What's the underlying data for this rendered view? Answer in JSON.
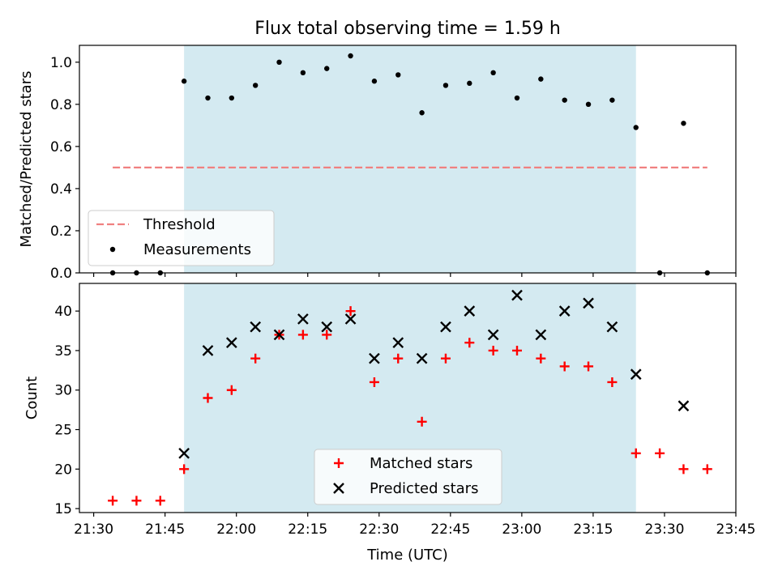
{
  "figure_title": "Flux total observing time = 1.59 h",
  "x_axis": {
    "label": "Time (UTC)",
    "ticks": [
      "21:30",
      "21:45",
      "22:00",
      "22:15",
      "22:30",
      "22:45",
      "23:00",
      "23:15",
      "23:30",
      "23:45"
    ],
    "range": [
      "21:27",
      "23:45"
    ]
  },
  "shaded_window": {
    "start": "21:49",
    "end": "23:24",
    "color": "#d4eaf1"
  },
  "chart_data": [
    {
      "type": "scatter",
      "title": "Flux total observing time = 1.59 h",
      "xlabel": "",
      "ylabel": "Matched/Predicted stars",
      "ylim": [
        0,
        1.08
      ],
      "yticks": [
        "0.0",
        "0.2",
        "0.4",
        "0.6",
        "0.8",
        "1.0"
      ],
      "legend": "lower-left",
      "threshold": {
        "name": "Threshold",
        "value": 0.5,
        "x_start": "21:34",
        "x_end": "23:39",
        "color": "#f08080"
      },
      "series": [
        {
          "name": "Measurements",
          "color": "#000000",
          "marker": "dot",
          "points": [
            [
              "21:34",
              0.0
            ],
            [
              "21:39",
              0.0
            ],
            [
              "21:44",
              0.0
            ],
            [
              "21:49",
              0.91
            ],
            [
              "21:54",
              0.83
            ],
            [
              "21:59",
              0.83
            ],
            [
              "22:04",
              0.89
            ],
            [
              "22:09",
              1.0
            ],
            [
              "22:14",
              0.95
            ],
            [
              "22:19",
              0.97
            ],
            [
              "22:24",
              1.03
            ],
            [
              "22:29",
              0.91
            ],
            [
              "22:34",
              0.94
            ],
            [
              "22:39",
              0.76
            ],
            [
              "22:44",
              0.89
            ],
            [
              "22:49",
              0.9
            ],
            [
              "22:54",
              0.95
            ],
            [
              "22:59",
              0.83
            ],
            [
              "23:04",
              0.92
            ],
            [
              "23:09",
              0.82
            ],
            [
              "23:14",
              0.8
            ],
            [
              "23:19",
              0.82
            ],
            [
              "23:24",
              0.69
            ],
            [
              "23:29",
              0.0
            ],
            [
              "23:34",
              0.71
            ],
            [
              "23:39",
              0.0
            ]
          ]
        }
      ]
    },
    {
      "type": "scatter",
      "title": "",
      "xlabel": "Time (UTC)",
      "ylabel": "Count",
      "ylim": [
        14.5,
        43.5
      ],
      "yticks": [
        "15",
        "20",
        "25",
        "30",
        "35",
        "40"
      ],
      "legend": "lower-center",
      "series": [
        {
          "name": "Matched stars",
          "color": "#ff0000",
          "marker": "plus",
          "points": [
            [
              "21:34",
              16
            ],
            [
              "21:39",
              16
            ],
            [
              "21:44",
              16
            ],
            [
              "21:49",
              20
            ],
            [
              "21:54",
              29
            ],
            [
              "21:59",
              30
            ],
            [
              "22:04",
              34
            ],
            [
              "22:09",
              37
            ],
            [
              "22:14",
              37
            ],
            [
              "22:19",
              37
            ],
            [
              "22:24",
              40
            ],
            [
              "22:29",
              31
            ],
            [
              "22:34",
              34
            ],
            [
              "22:39",
              26
            ],
            [
              "22:44",
              34
            ],
            [
              "22:49",
              36
            ],
            [
              "22:54",
              35
            ],
            [
              "22:59",
              35
            ],
            [
              "23:04",
              34
            ],
            [
              "23:09",
              33
            ],
            [
              "23:14",
              33
            ],
            [
              "23:19",
              31
            ],
            [
              "23:24",
              22
            ],
            [
              "23:29",
              22
            ],
            [
              "23:34",
              20
            ],
            [
              "23:39",
              20
            ]
          ]
        },
        {
          "name": "Predicted stars",
          "color": "#000000",
          "marker": "x",
          "points": [
            [
              "21:49",
              22
            ],
            [
              "21:54",
              35
            ],
            [
              "21:59",
              36
            ],
            [
              "22:04",
              38
            ],
            [
              "22:09",
              37
            ],
            [
              "22:14",
              39
            ],
            [
              "22:19",
              38
            ],
            [
              "22:24",
              39
            ],
            [
              "22:29",
              34
            ],
            [
              "22:34",
              36
            ],
            [
              "22:39",
              34
            ],
            [
              "22:44",
              38
            ],
            [
              "22:49",
              40
            ],
            [
              "22:54",
              37
            ],
            [
              "22:59",
              42
            ],
            [
              "23:04",
              37
            ],
            [
              "23:09",
              40
            ],
            [
              "23:14",
              41
            ],
            [
              "23:19",
              38
            ],
            [
              "23:24",
              32
            ],
            [
              "23:34",
              28
            ]
          ]
        }
      ]
    }
  ]
}
